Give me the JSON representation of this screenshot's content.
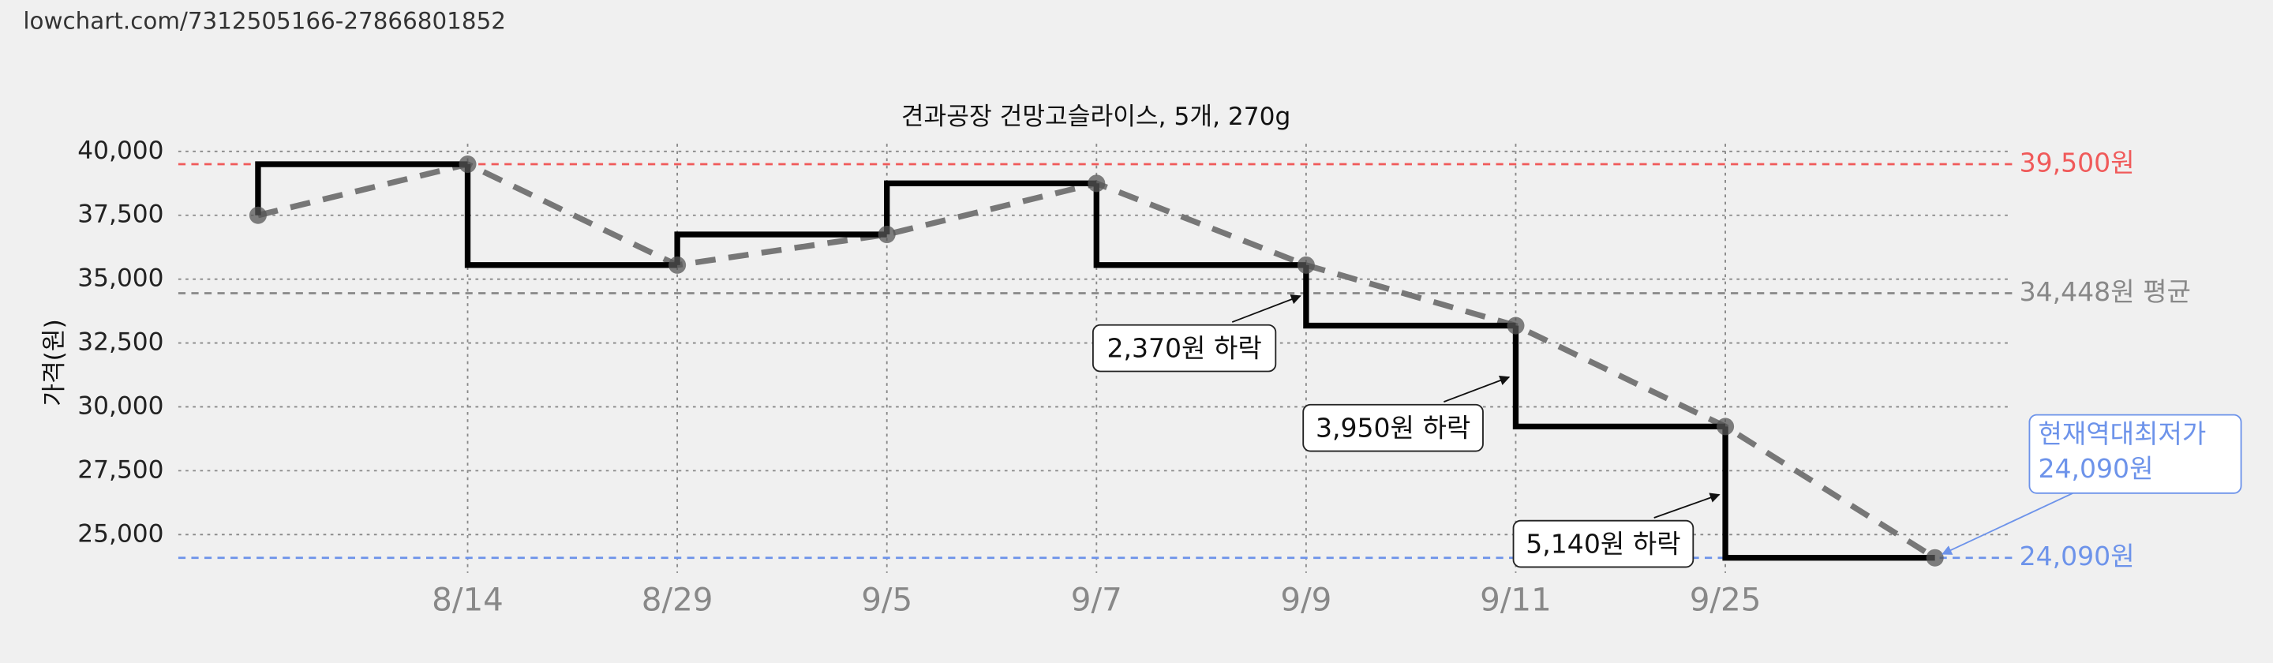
{
  "header": {
    "url": "lowchart.com/7312505166-27866801852"
  },
  "chart_data": {
    "type": "step-line",
    "title": "견과공장 건망고슬라이스, 5개, 270g",
    "y_label": "가격(원)",
    "categories": [
      null,
      "8/14",
      "8/29",
      "9/5",
      "9/7",
      "9/9",
      "9/11",
      "9/25",
      null
    ],
    "series": [
      {
        "name": "가격",
        "color": "#000000",
        "values": [
          37500,
          39500,
          35550,
          36750,
          38750,
          35550,
          33180,
          29230,
          24090
        ]
      }
    ],
    "trend_color": "#777777",
    "ylim": [
      23500,
      40300
    ],
    "yticks": [
      {
        "value": 25000,
        "label": "25,000"
      },
      {
        "value": 27500,
        "label": "27,500"
      },
      {
        "value": 30000,
        "label": "30,000"
      },
      {
        "value": 32500,
        "label": "32,500"
      },
      {
        "value": 35000,
        "label": "35,000"
      },
      {
        "value": 37500,
        "label": "37,500"
      },
      {
        "value": 40000,
        "label": "40,000"
      }
    ],
    "grid": true,
    "reference_lines": [
      {
        "value": 39500,
        "label": "39,500원",
        "color": "#f05a5a"
      },
      {
        "value": 34448,
        "label": "34,448원 평균",
        "color": "#888888"
      },
      {
        "value": 24090,
        "label": "24,090원",
        "color": "#6d93ea"
      }
    ],
    "annotations": [
      {
        "text": "2,370원 하락"
      },
      {
        "text": "3,950원 하락"
      },
      {
        "text": "5,140원 하락"
      },
      {
        "text": [
          "현재역대최저가",
          "24,090원"
        ],
        "color": "#6d93ea"
      }
    ]
  }
}
